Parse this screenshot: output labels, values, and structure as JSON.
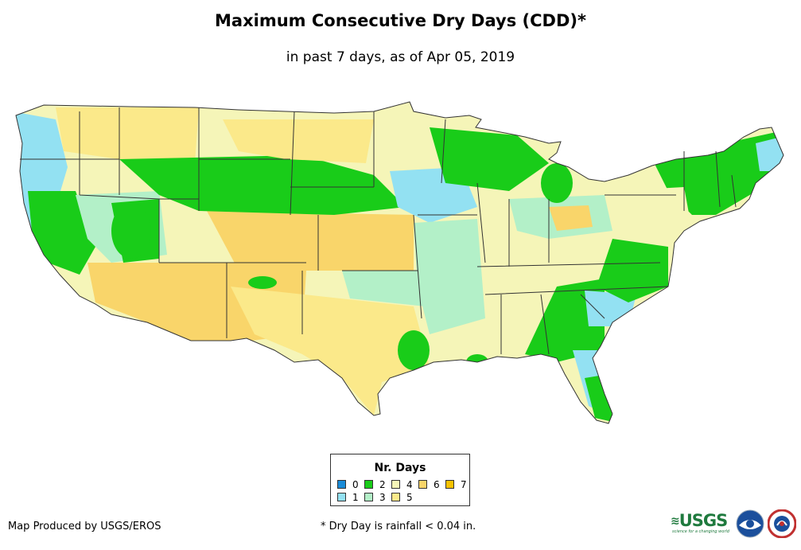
{
  "title": "Maximum Consecutive Dry Days (CDD)*",
  "subtitle": "in past 7 days, as of Apr 05, 2019",
  "legend": {
    "title": "Nr. Days",
    "items": [
      {
        "label": "0",
        "color": "#1a8cd8"
      },
      {
        "label": "1",
        "color": "#93e1f2"
      },
      {
        "label": "2",
        "color": "#19cc19"
      },
      {
        "label": "3",
        "color": "#b3f0c8"
      },
      {
        "label": "4",
        "color": "#f5f5b8"
      },
      {
        "label": "5",
        "color": "#fbe98a"
      },
      {
        "label": "6",
        "color": "#f9d56a"
      },
      {
        "label": "7",
        "color": "#f7c200"
      }
    ]
  },
  "credit": "Map Produced by USGS/EROS",
  "footnote": "* Dry Day is rainfall < 0.04 in.",
  "logos": {
    "usgs": "USGS",
    "usgs_tagline": "science for a changing world",
    "noaa_icon": "noaa-logo",
    "nws_icon": "national-weather-service-logo"
  }
}
